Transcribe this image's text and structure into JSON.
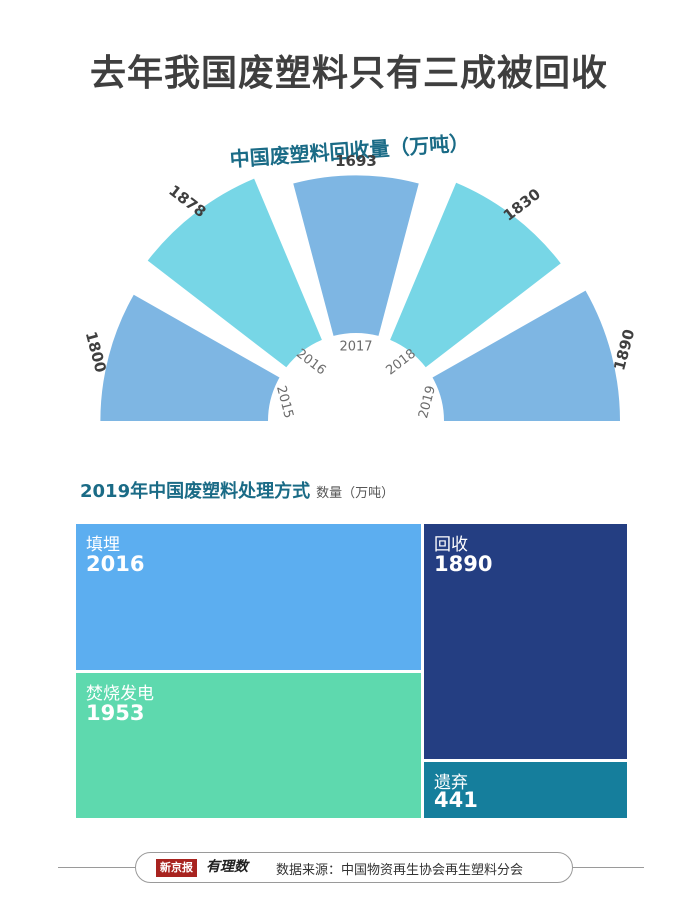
{
  "title": "去年我国废塑料只有三成被回收",
  "chart_data": [
    {
      "type": "bar",
      "layout": "radial",
      "title": "中国废塑料回收量（万吨）",
      "categories": [
        "2015",
        "2016",
        "2017",
        "2018",
        "2019"
      ],
      "values": [
        1800,
        1878,
        1693,
        1830,
        1890
      ],
      "colors": [
        "#7eb6e3",
        "#77d6e6",
        "#7eb6e3",
        "#77d6e6",
        "#7eb6e3"
      ]
    },
    {
      "type": "treemap",
      "title": "2019年中国废塑料处理方式",
      "unit_label": "数量（万吨）",
      "categories": [
        "填埋",
        "回收",
        "焚烧发电",
        "遗弃"
      ],
      "values": [
        2016,
        1890,
        1953,
        441
      ],
      "colors": [
        "#5caef0",
        "#243e82",
        "#5ed9ae",
        "#157e9c"
      ]
    }
  ],
  "footer": {
    "logo_brand": "新京报",
    "logo_column": "有理数",
    "source": "数据来源：中国物资再生协会再生塑料分会"
  }
}
